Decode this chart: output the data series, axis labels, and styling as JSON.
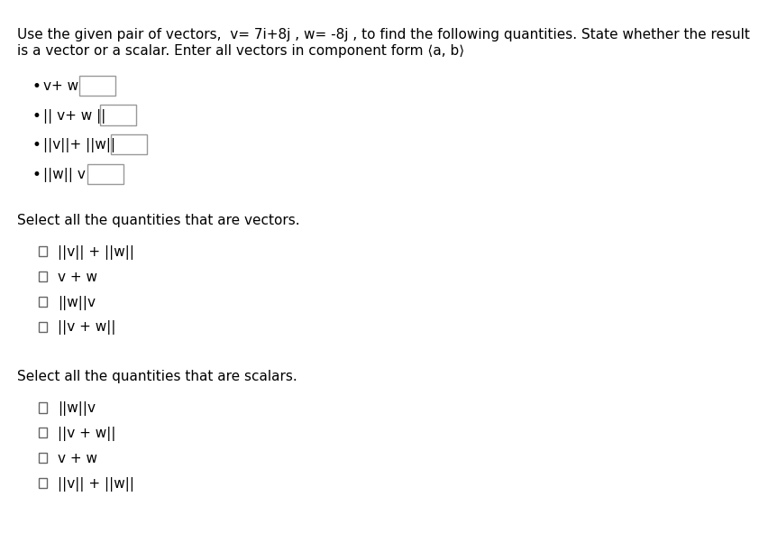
{
  "title_line1": "Use the given pair of vectors,  v= 7i+8j , w= -8j , to find the following quantities. State whether the result",
  "title_line2": "is a vector or a scalar. Enter all vectors in component form ⟨a, b⟩",
  "section1_title": "Select all the quantities that are vectors.",
  "section2_title": "Select all the quantities that are scalars.",
  "bg_color": "#ffffff",
  "text_color": "#000000",
  "font_size": 11
}
